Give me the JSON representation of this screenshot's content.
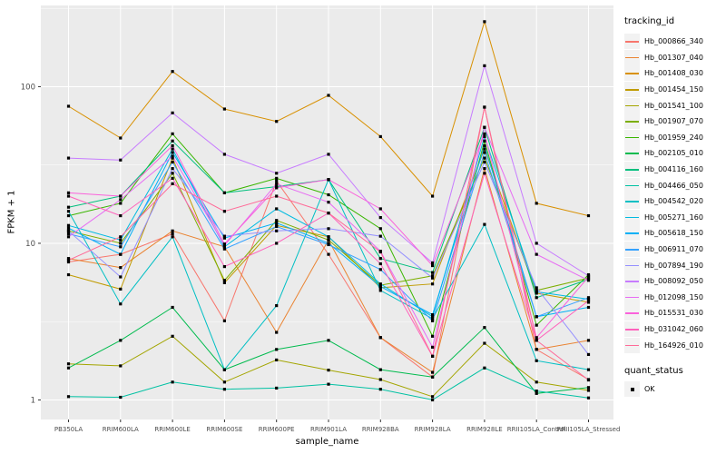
{
  "chart_data": {
    "type": "line",
    "title": "",
    "xlabel": "sample_name",
    "ylabel": "FPKM + 1",
    "y_scale": "log10",
    "y_ticks": [
      1,
      10,
      100
    ],
    "y_minor_ticks": [
      3.162,
      31.62,
      316.2
    ],
    "ylim": [
      0.75,
      330
    ],
    "grid": true,
    "legend_position": "right",
    "panel_bg": "#EBEBEB",
    "grid_color": "#FFFFFF",
    "tick_label_color": "#4D4D4D",
    "point_marker": "black-square",
    "categories": [
      "PB350LA",
      "RRIM600LA",
      "RRIM600LE",
      "RRIM600SE",
      "RRIM600PE",
      "RRIM901LA",
      "RRIM928BA",
      "RRIM928LA",
      "RRIM928LE",
      "RRII105LA_Control",
      "RRII105LA_Stressed"
    ],
    "series": [
      {
        "name": "Hb_000866_340",
        "color": "#F8766D",
        "values": [
          7.6,
          8.5,
          11.5,
          3.2,
          25,
          8.5,
          2.5,
          1.4,
          74,
          2.1,
          1.35
        ]
      },
      {
        "name": "Hb_001307_040",
        "color": "#EA8331",
        "values": [
          8.0,
          7.0,
          12,
          9.5,
          2.7,
          10.5,
          2.5,
          1.5,
          30,
          2.1,
          2.4
        ]
      },
      {
        "name": "Hb_001408_030",
        "color": "#D89000",
        "values": [
          75,
          47,
          125,
          72,
          60,
          88,
          48,
          20,
          260,
          18,
          15
        ]
      },
      {
        "name": "Hb_001454_150",
        "color": "#C09B00",
        "values": [
          6.3,
          5.1,
          35,
          5.6,
          13,
          11,
          5.2,
          5.5,
          40,
          4.8,
          4.2
        ]
      },
      {
        "name": "Hb_001541_100",
        "color": "#A3A500",
        "values": [
          1.7,
          1.65,
          2.55,
          1.3,
          1.8,
          1.55,
          1.35,
          1.05,
          2.3,
          1.3,
          1.15
        ]
      },
      {
        "name": "Hb_001907_070",
        "color": "#7CAE00",
        "values": [
          12,
          10,
          28,
          5.8,
          14,
          10.5,
          5.4,
          6.2,
          35,
          5.0,
          6.0
        ]
      },
      {
        "name": "Hb_001959_240",
        "color": "#39B600",
        "values": [
          15,
          18,
          50,
          21,
          26,
          20.4,
          12.4,
          2.55,
          45,
          3.0,
          6.3
        ]
      },
      {
        "name": "Hb_002105_010",
        "color": "#00BB4E",
        "values": [
          1.6,
          2.4,
          3.9,
          1.56,
          2.1,
          2.4,
          1.56,
          1.4,
          2.9,
          1.1,
          1.2
        ]
      },
      {
        "name": "Hb_004116_160",
        "color": "#00BF7D",
        "values": [
          17,
          20,
          45,
          21,
          23,
          25.5,
          8.0,
          6.5,
          55,
          4.5,
          5.9
        ]
      },
      {
        "name": "Hb_004466_050",
        "color": "#00C1A3",
        "values": [
          1.05,
          1.04,
          1.3,
          1.17,
          1.19,
          1.26,
          1.17,
          1.0,
          1.6,
          1.14,
          1.03
        ]
      },
      {
        "name": "Hb_004542_020",
        "color": "#00BFC4",
        "values": [
          16,
          4.1,
          11,
          1.56,
          4.0,
          25.5,
          5.0,
          3.3,
          13.2,
          1.78,
          1.56
        ]
      },
      {
        "name": "Hb_005271_160",
        "color": "#00BAE0",
        "values": [
          13,
          10.5,
          40,
          9.5,
          16.6,
          11,
          5.5,
          3.4,
          48,
          4.9,
          4.4
        ]
      },
      {
        "name": "Hb_005618_150",
        "color": "#00B0F6",
        "values": [
          12.5,
          8.5,
          38,
          10.8,
          13.5,
          10,
          5.3,
          3.5,
          42,
          3.4,
          3.9
        ]
      },
      {
        "name": "Hb_006911_070",
        "color": "#35A2FF",
        "values": [
          11.5,
          9.5,
          33,
          9.2,
          12.8,
          9.8,
          6.8,
          3.2,
          38,
          3.4,
          4.5
        ]
      },
      {
        "name": "Hb_007894_190",
        "color": "#9590FF",
        "values": [
          12,
          6.1,
          30,
          11.1,
          12,
          12.4,
          11.1,
          6.0,
          33,
          5.2,
          1.95
        ]
      },
      {
        "name": "Hb_008092_050",
        "color": "#C77CFF",
        "values": [
          35,
          34,
          68,
          37,
          28,
          37,
          14.6,
          7.5,
          136,
          10,
          6.2
        ]
      },
      {
        "name": "Hb_012098_150",
        "color": "#E76BF3",
        "values": [
          11,
          19,
          36,
          9.7,
          24,
          18.3,
          8.9,
          2.17,
          55,
          8.5,
          5.8
        ]
      },
      {
        "name": "Hb_015531_030",
        "color": "#FA62DB",
        "values": [
          21,
          20,
          42,
          9.9,
          22.6,
          25.5,
          16.6,
          7.2,
          50,
          2.5,
          6.1
        ]
      },
      {
        "name": "Hb_031042_060",
        "color": "#FF62BC",
        "values": [
          20,
          15,
          26,
          7.1,
          10,
          15.6,
          7.4,
          1.9,
          28,
          2.4,
          4.3
        ]
      },
      {
        "name": "Hb_164926_010",
        "color": "#FF6A98",
        "values": [
          7.8,
          11,
          24,
          16,
          20,
          15.6,
          8.8,
          1.9,
          74,
          2.4,
          1.34
        ]
      }
    ],
    "legend": {
      "color_title": "tracking_id",
      "shape_title": "quant_status",
      "shape_items": [
        {
          "label": "OK",
          "marker": "black-square"
        }
      ]
    }
  }
}
